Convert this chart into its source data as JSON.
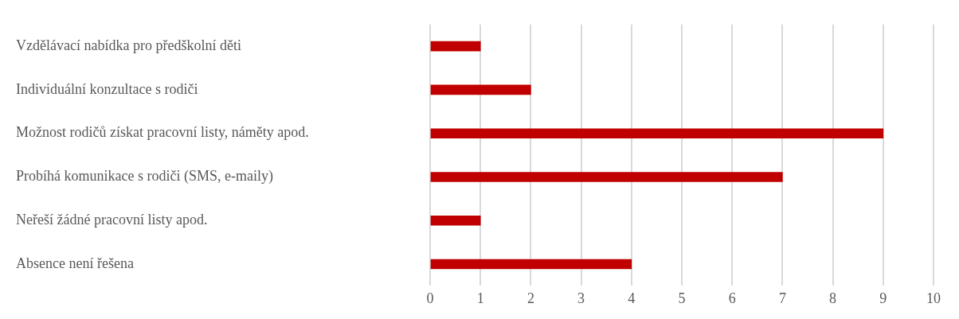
{
  "chart_data": {
    "type": "bar",
    "orientation": "horizontal",
    "categories": [
      "Vzdělávací nabídka pro předškolní děti",
      "Individuální konzultace s rodiči",
      "Možnost rodičů získat pracovní listy, náměty apod.",
      "Probíhá komunikace s rodiči (SMS, e-maily)",
      "Neřeší žádné pracovní listy apod.",
      "Absence není řešena"
    ],
    "values": [
      1,
      2,
      9,
      7,
      1,
      4
    ],
    "color": "#c00000",
    "xlim": [
      0,
      10
    ],
    "xticks": [
      0,
      1,
      2,
      3,
      4,
      5,
      6,
      7,
      8,
      9,
      10
    ],
    "grid": "x",
    "legend": false
  }
}
